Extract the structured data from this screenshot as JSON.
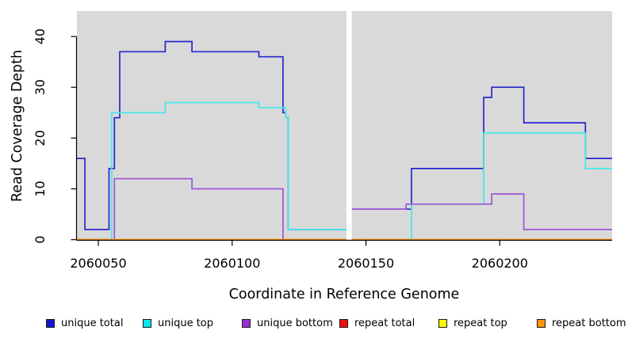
{
  "figure": {
    "xlabel": "Coordinate in Reference Genome",
    "ylabel": "Read Coverage Depth",
    "plot_background": "#d9d9d9",
    "axis_color": "#000000"
  },
  "chart_data": {
    "type": "line",
    "step": true,
    "grid": false,
    "xlim": [
      2060042,
      2060242
    ],
    "ylim": [
      0,
      45
    ],
    "x_ticks": [
      2060050,
      2060100,
      2060150,
      2060200
    ],
    "x_tick_labels": [
      "2060050",
      "2060100",
      "2060150",
      "2060200"
    ],
    "y_ticks": [
      0,
      10,
      20,
      30,
      40
    ],
    "y_tick_labels": [
      "0",
      "10",
      "20",
      "30",
      "40"
    ],
    "gap_mask": {
      "x_start": 2060142.7,
      "x_end": 2060144.7,
      "color": "#ffffff"
    },
    "series": [
      {
        "name": "unique total",
        "color": "#2727cf",
        "points": [
          [
            2060042,
            16
          ],
          [
            2060045,
            2
          ],
          [
            2060054,
            14
          ],
          [
            2060056,
            24
          ],
          [
            2060058,
            37
          ],
          [
            2060075,
            39
          ],
          [
            2060085,
            37
          ],
          [
            2060110,
            36
          ],
          [
            2060119,
            25
          ],
          [
            2060120,
            24
          ],
          [
            2060121,
            2
          ],
          [
            2060143,
            6
          ],
          [
            2060167,
            14
          ],
          [
            2060194,
            28
          ],
          [
            2060197,
            30
          ],
          [
            2060209,
            23
          ],
          [
            2060232,
            16
          ]
        ]
      },
      {
        "name": "unique top",
        "color": "#45e9e9",
        "points": [
          [
            2060042,
            0
          ],
          [
            2060055,
            25
          ],
          [
            2060075,
            27
          ],
          [
            2060110,
            26
          ],
          [
            2060120,
            24
          ],
          [
            2060121,
            2
          ],
          [
            2060143,
            0
          ],
          [
            2060167,
            7
          ],
          [
            2060194,
            21
          ],
          [
            2060232,
            14
          ]
        ]
      },
      {
        "name": "unique bottom",
        "color": "#9c55d6",
        "points": [
          [
            2060042,
            0
          ],
          [
            2060056,
            12
          ],
          [
            2060085,
            10
          ],
          [
            2060119,
            0
          ],
          [
            2060143,
            6
          ],
          [
            2060165,
            7
          ],
          [
            2060197,
            9
          ],
          [
            2060209,
            2
          ]
        ]
      },
      {
        "name": "repeat total",
        "color": "#dd2020",
        "points": [
          [
            2060042,
            0
          ]
        ]
      },
      {
        "name": "repeat top",
        "color": "#f2f20a",
        "points": [
          [
            2060042,
            0
          ]
        ]
      },
      {
        "name": "repeat bottom",
        "color": "#ff9405",
        "points": [
          [
            2060042,
            0
          ]
        ]
      }
    ]
  },
  "legend": {
    "items": [
      {
        "label": "unique total",
        "color": "#1515d0"
      },
      {
        "label": "unique top",
        "color": "#00e8e8"
      },
      {
        "label": "unique bottom",
        "color": "#9c2fd1"
      },
      {
        "label": "repeat total",
        "color": "#ee1111"
      },
      {
        "label": "repeat top",
        "color": "#f8f800"
      },
      {
        "label": "repeat bottom",
        "color": "#ff9405"
      }
    ]
  }
}
